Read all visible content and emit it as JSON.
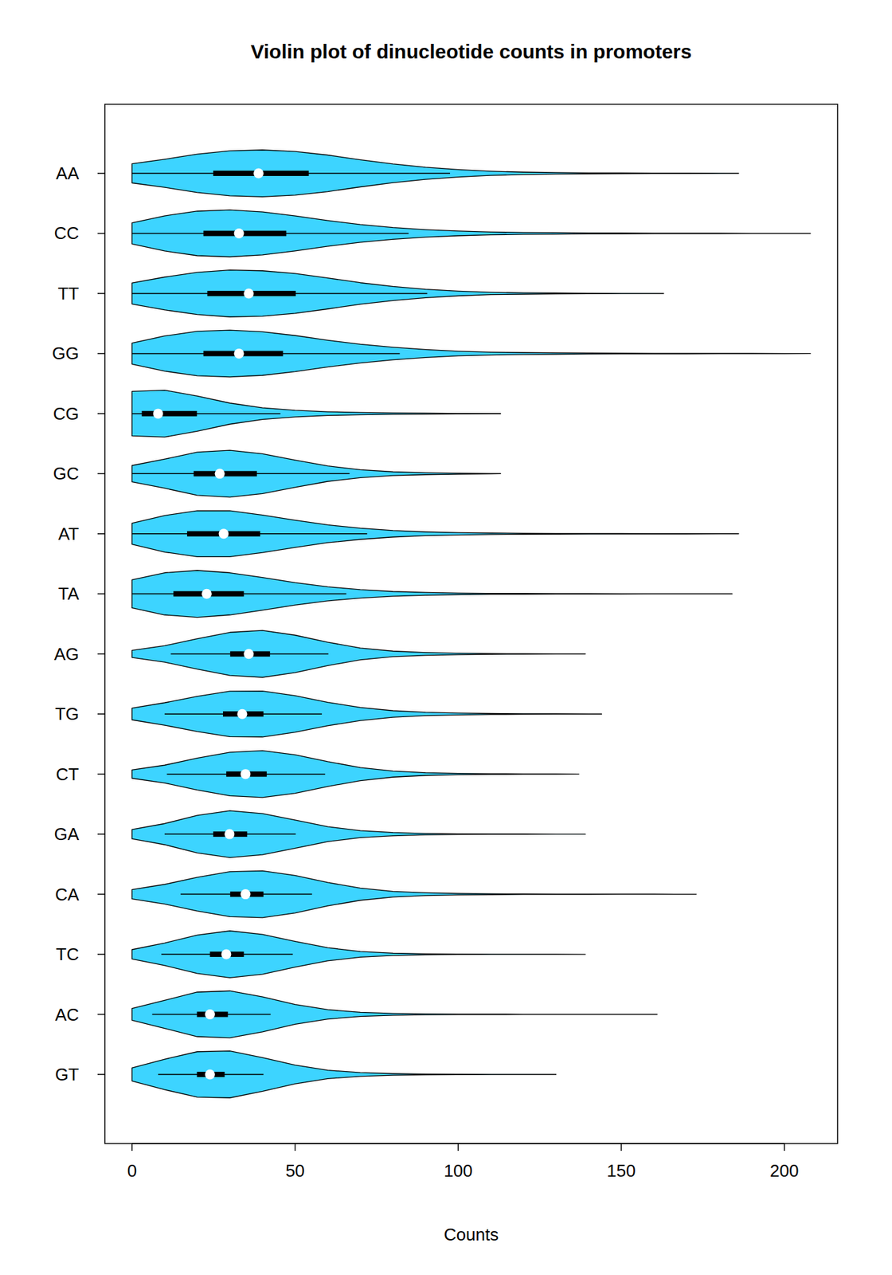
{
  "chart_data": {
    "type": "violin",
    "title": "Violin plot of dinucleotide counts in promoters",
    "x_label": "Counts",
    "orientation": "horizontal",
    "color": "#3dd4ff",
    "xlim": [
      -8.32,
      216.32
    ],
    "xticks": [
      0,
      50,
      100,
      150,
      200
    ],
    "density_x": [
      0,
      10,
      20,
      30,
      40,
      50,
      60,
      70,
      80,
      90,
      100,
      110,
      120,
      130,
      140,
      150,
      160,
      170,
      180,
      190,
      200,
      210
    ],
    "series": [
      {
        "name": "AA",
        "min": 0,
        "q1": 24.9,
        "median": 38.8,
        "q3": 54.2,
        "whisker_low": 0,
        "whisker_high": 97.5,
        "max": 186,
        "density": [
          0.41,
          0.6,
          0.82,
          0.96,
          1,
          0.93,
          0.78,
          0.58,
          0.4,
          0.26,
          0.16,
          0.09,
          0.05,
          0.03,
          0.02,
          0.015,
          0.01,
          0.01,
          0.005,
          0,
          0,
          0
        ]
      },
      {
        "name": "CC",
        "min": 0,
        "q1": 21.9,
        "median": 32.8,
        "q3": 47.3,
        "whisker_low": 0,
        "whisker_high": 84.8,
        "max": 208,
        "density": [
          0.45,
          0.75,
          0.95,
          1,
          0.92,
          0.75,
          0.55,
          0.38,
          0.25,
          0.16,
          0.1,
          0.06,
          0.04,
          0.03,
          0.02,
          0.015,
          0.01,
          0.01,
          0.008,
          0.005,
          0.003,
          0
        ]
      },
      {
        "name": "TT",
        "min": 0,
        "q1": 23.1,
        "median": 35.8,
        "q3": 50.2,
        "whisker_low": 0,
        "whisker_high": 90.5,
        "max": 163,
        "density": [
          0.45,
          0.7,
          0.9,
          1,
          0.97,
          0.85,
          0.66,
          0.46,
          0.3,
          0.18,
          0.1,
          0.05,
          0.03,
          0.02,
          0.01,
          0.005,
          0.003,
          0,
          0,
          0,
          0,
          0
        ]
      },
      {
        "name": "GG",
        "min": 0,
        "q1": 21.9,
        "median": 32.8,
        "q3": 46.3,
        "whisker_low": 0,
        "whisker_high": 82.1,
        "max": 208,
        "density": [
          0.45,
          0.75,
          0.95,
          1,
          0.93,
          0.77,
          0.57,
          0.4,
          0.27,
          0.17,
          0.1,
          0.06,
          0.04,
          0.03,
          0.02,
          0.015,
          0.01,
          0.01,
          0.008,
          0.005,
          0.003,
          0
        ]
      },
      {
        "name": "CG",
        "min": 0,
        "q1": 3.0,
        "median": 8.0,
        "q3": 19.9,
        "whisker_low": 0,
        "whisker_high": 45.5,
        "max": 113,
        "density": [
          0.95,
          1,
          0.75,
          0.45,
          0.25,
          0.14,
          0.08,
          0.05,
          0.03,
          0.02,
          0.01,
          0.005,
          0,
          0,
          0,
          0,
          0,
          0,
          0,
          0,
          0,
          0
        ]
      },
      {
        "name": "GC",
        "min": 0,
        "q1": 18.9,
        "median": 26.9,
        "q3": 38.3,
        "whisker_low": 0,
        "whisker_high": 66.7,
        "max": 113,
        "density": [
          0.35,
          0.62,
          0.92,
          1,
          0.85,
          0.58,
          0.33,
          0.17,
          0.08,
          0.04,
          0.02,
          0.005,
          0,
          0,
          0,
          0,
          0,
          0,
          0,
          0,
          0,
          0
        ]
      },
      {
        "name": "AT",
        "min": 0,
        "q1": 16.9,
        "median": 28.1,
        "q3": 39.3,
        "whisker_low": 0,
        "whisker_high": 72.1,
        "max": 186,
        "density": [
          0.45,
          0.78,
          0.98,
          0.98,
          0.8,
          0.58,
          0.38,
          0.24,
          0.14,
          0.08,
          0.05,
          0.03,
          0.02,
          0.015,
          0.01,
          0.008,
          0.006,
          0.005,
          0.003,
          0,
          0,
          0
        ]
      },
      {
        "name": "TA",
        "min": 0,
        "q1": 12.7,
        "median": 22.9,
        "q3": 34.3,
        "whisker_low": 0,
        "whisker_high": 65.7,
        "max": 184,
        "density": [
          0.6,
          0.9,
          1,
          0.9,
          0.7,
          0.48,
          0.3,
          0.18,
          0.1,
          0.06,
          0.035,
          0.02,
          0.015,
          0.01,
          0.008,
          0.006,
          0.005,
          0.004,
          0.003,
          0,
          0,
          0
        ]
      },
      {
        "name": "AG",
        "min": 0,
        "q1": 30.1,
        "median": 35.8,
        "q3": 42.3,
        "whisker_low": 11.9,
        "whisker_high": 60.2,
        "max": 139,
        "density": [
          0.15,
          0.35,
          0.65,
          0.92,
          1,
          0.8,
          0.5,
          0.25,
          0.12,
          0.06,
          0.03,
          0.015,
          0.008,
          0.004,
          0,
          0,
          0,
          0,
          0,
          0,
          0,
          0
        ]
      },
      {
        "name": "TG",
        "min": 0,
        "q1": 27.9,
        "median": 33.8,
        "q3": 40.3,
        "whisker_low": 10,
        "whisker_high": 58.2,
        "max": 144,
        "density": [
          0.25,
          0.48,
          0.75,
          0.97,
          0.98,
          0.78,
          0.5,
          0.28,
          0.14,
          0.07,
          0.04,
          0.02,
          0.01,
          0.005,
          0.003,
          0,
          0,
          0,
          0,
          0,
          0,
          0
        ]
      },
      {
        "name": "CT",
        "min": 0,
        "q1": 28.9,
        "median": 34.8,
        "q3": 41.3,
        "whisker_low": 10.7,
        "whisker_high": 59.2,
        "max": 137,
        "density": [
          0.18,
          0.38,
          0.68,
          0.93,
          1,
          0.82,
          0.53,
          0.28,
          0.13,
          0.06,
          0.03,
          0.015,
          0.008,
          0.004,
          0,
          0,
          0,
          0,
          0,
          0,
          0,
          0
        ]
      },
      {
        "name": "GA",
        "min": 0,
        "q1": 24.9,
        "median": 29.9,
        "q3": 35.3,
        "whisker_low": 10,
        "whisker_high": 50.2,
        "max": 139,
        "density": [
          0.2,
          0.45,
          0.8,
          1,
          0.88,
          0.6,
          0.32,
          0.15,
          0.07,
          0.03,
          0.015,
          0.008,
          0.004,
          0.002,
          0,
          0,
          0,
          0,
          0,
          0,
          0,
          0
        ]
      },
      {
        "name": "CA",
        "min": 0,
        "q1": 30.1,
        "median": 34.8,
        "q3": 40.3,
        "whisker_low": 14.9,
        "whisker_high": 55.2,
        "max": 173,
        "density": [
          0.2,
          0.42,
          0.72,
          0.96,
          1,
          0.8,
          0.5,
          0.26,
          0.12,
          0.06,
          0.03,
          0.02,
          0.01,
          0.008,
          0.005,
          0.003,
          0.002,
          0.001,
          0,
          0,
          0,
          0
        ]
      },
      {
        "name": "TC",
        "min": 0,
        "q1": 23.9,
        "median": 28.9,
        "q3": 34.3,
        "whisker_low": 9,
        "whisker_high": 49.3,
        "max": 139,
        "density": [
          0.2,
          0.48,
          0.82,
          1,
          0.85,
          0.55,
          0.28,
          0.12,
          0.05,
          0.02,
          0.01,
          0.005,
          0.003,
          0.002,
          0,
          0,
          0,
          0,
          0,
          0,
          0,
          0
        ]
      },
      {
        "name": "AC",
        "min": 0,
        "q1": 19.9,
        "median": 23.9,
        "q3": 29.4,
        "whisker_low": 6.2,
        "whisker_high": 42.5,
        "max": 161,
        "density": [
          0.25,
          0.6,
          0.95,
          1,
          0.75,
          0.42,
          0.2,
          0.09,
          0.04,
          0.02,
          0.012,
          0.008,
          0.005,
          0.004,
          0.003,
          0.002,
          0.001,
          0,
          0,
          0,
          0,
          0
        ]
      },
      {
        "name": "GT",
        "min": 0,
        "q1": 19.9,
        "median": 23.9,
        "q3": 28.4,
        "whisker_low": 8,
        "whisker_high": 40.3,
        "max": 130,
        "density": [
          0.28,
          0.65,
          0.97,
          1,
          0.72,
          0.4,
          0.18,
          0.08,
          0.035,
          0.015,
          0.008,
          0.005,
          0.003,
          0.001,
          0,
          0,
          0,
          0,
          0,
          0,
          0,
          0
        ]
      }
    ]
  }
}
